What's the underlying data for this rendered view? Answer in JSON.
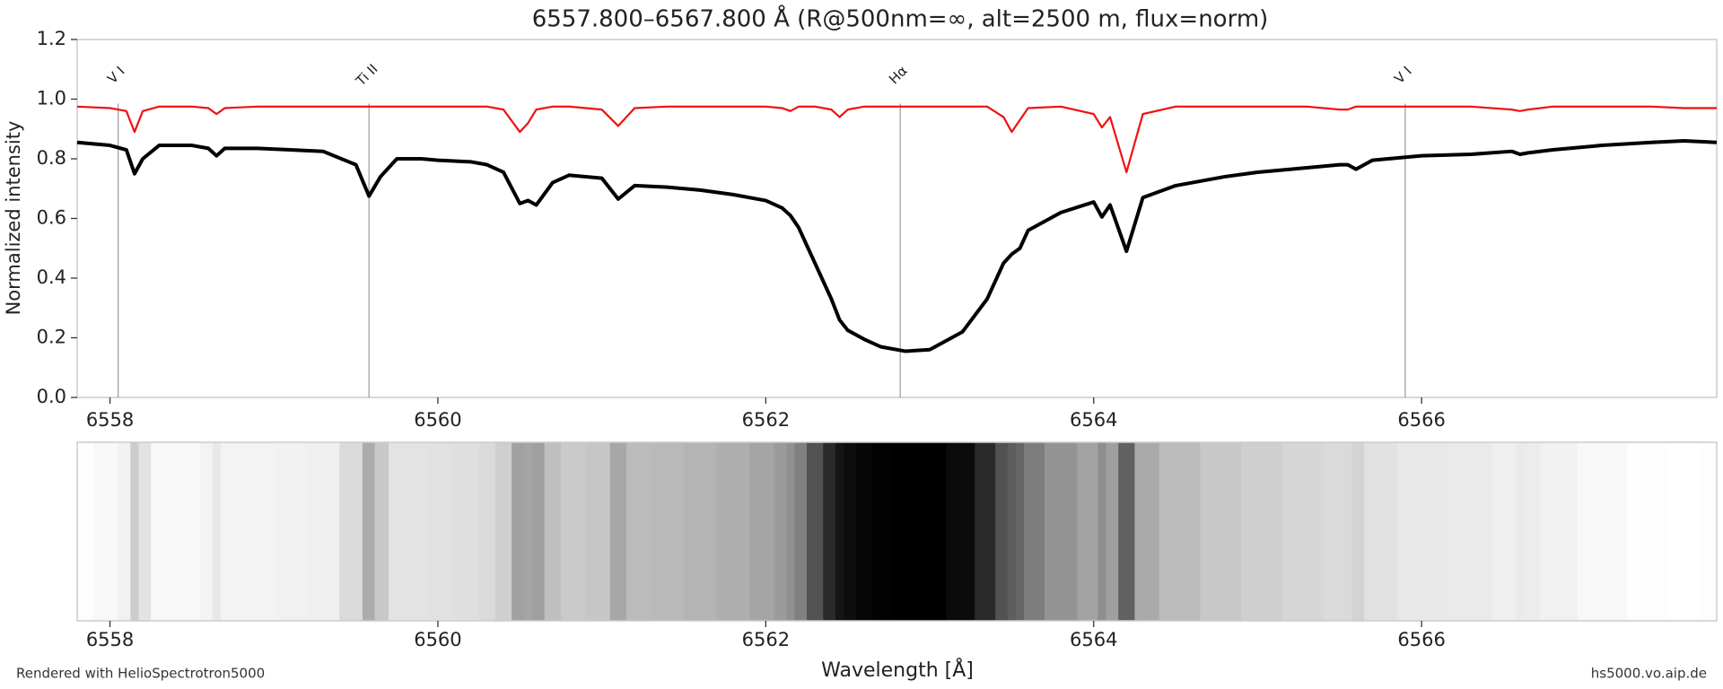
{
  "chart_data": {
    "type": "line",
    "title": "6557.800–6567.800 Å   (R@500nm=∞, alt=2500 m, flux=norm)",
    "x_label": "Wavelength [Å]",
    "y_label": "Normalized intensity",
    "footer_left": "Rendered with HelioSpectrotron5000",
    "footer_right": "hs5000.vo.aip.de",
    "x": [
      6557.8,
      6558.0,
      6558.1,
      6558.15,
      6558.2,
      6558.3,
      6558.5,
      6558.6,
      6558.65,
      6558.7,
      6558.9,
      6559.1,
      6559.3,
      6559.5,
      6559.58,
      6559.65,
      6559.75,
      6559.9,
      6560.0,
      6560.2,
      6560.3,
      6560.4,
      6560.5,
      6560.55,
      6560.6,
      6560.7,
      6560.8,
      6561.0,
      6561.1,
      6561.2,
      6561.4,
      6561.6,
      6561.8,
      6562.0,
      6562.1,
      6562.15,
      6562.2,
      6562.3,
      6562.4,
      6562.45,
      6562.5,
      6562.6,
      6562.7,
      6562.85,
      6563.0,
      6563.2,
      6563.35,
      6563.45,
      6563.5,
      6563.55,
      6563.6,
      6563.8,
      6564.0,
      6564.05,
      6564.1,
      6564.2,
      6564.3,
      6564.5,
      6564.8,
      6565.0,
      6565.3,
      6565.5,
      6565.55,
      6565.6,
      6565.7,
      6566.0,
      6566.3,
      6566.55,
      6566.6,
      6566.65,
      6566.8,
      6567.1,
      6567.4,
      6567.6,
      6567.8
    ],
    "series": [
      {
        "color": "#000000",
        "values": [
          0.855,
          0.845,
          0.83,
          0.75,
          0.8,
          0.845,
          0.845,
          0.835,
          0.81,
          0.835,
          0.835,
          0.83,
          0.825,
          0.78,
          0.675,
          0.74,
          0.8,
          0.8,
          0.795,
          0.79,
          0.78,
          0.755,
          0.65,
          0.66,
          0.645,
          0.72,
          0.745,
          0.735,
          0.665,
          0.71,
          0.705,
          0.695,
          0.68,
          0.66,
          0.635,
          0.61,
          0.57,
          0.45,
          0.33,
          0.26,
          0.225,
          0.195,
          0.17,
          0.155,
          0.16,
          0.22,
          0.33,
          0.45,
          0.48,
          0.5,
          0.56,
          0.62,
          0.655,
          0.605,
          0.645,
          0.49,
          0.67,
          0.71,
          0.74,
          0.755,
          0.77,
          0.78,
          0.78,
          0.765,
          0.795,
          0.81,
          0.815,
          0.825,
          0.815,
          0.82,
          0.83,
          0.845,
          0.855,
          0.86,
          0.855
        ]
      },
      {
        "color": "#ee1111",
        "values": [
          0.975,
          0.97,
          0.96,
          0.89,
          0.96,
          0.975,
          0.975,
          0.97,
          0.95,
          0.97,
          0.975,
          0.975,
          0.975,
          0.975,
          0.975,
          0.975,
          0.975,
          0.975,
          0.975,
          0.975,
          0.975,
          0.965,
          0.89,
          0.92,
          0.965,
          0.975,
          0.975,
          0.965,
          0.91,
          0.97,
          0.975,
          0.975,
          0.975,
          0.975,
          0.97,
          0.96,
          0.975,
          0.975,
          0.965,
          0.94,
          0.965,
          0.975,
          0.975,
          0.975,
          0.975,
          0.975,
          0.975,
          0.94,
          0.89,
          0.93,
          0.97,
          0.975,
          0.95,
          0.905,
          0.94,
          0.755,
          0.95,
          0.975,
          0.975,
          0.975,
          0.975,
          0.965,
          0.965,
          0.975,
          0.975,
          0.975,
          0.975,
          0.965,
          0.96,
          0.965,
          0.975,
          0.975,
          0.975,
          0.97,
          0.97
        ]
      }
    ],
    "annotations": [
      {
        "text": "V I",
        "x": 6558.05
      },
      {
        "text": "Ti II",
        "x": 6559.58
      },
      {
        "text": "Hα",
        "x": 6562.82
      },
      {
        "text": "V I",
        "x": 6565.9
      }
    ],
    "xlim": [
      6557.8,
      6567.8
    ],
    "xticks": [
      6558,
      6560,
      6562,
      6564,
      6566
    ],
    "ylim": [
      0,
      1.2
    ],
    "yticks": [
      {
        "value": 0,
        "label": "0.0"
      },
      0.2,
      0.4,
      0.6,
      0.8,
      {
        "value": 1,
        "label": "1.0"
      },
      1.2
    ],
    "spectrum_strip": true
  }
}
